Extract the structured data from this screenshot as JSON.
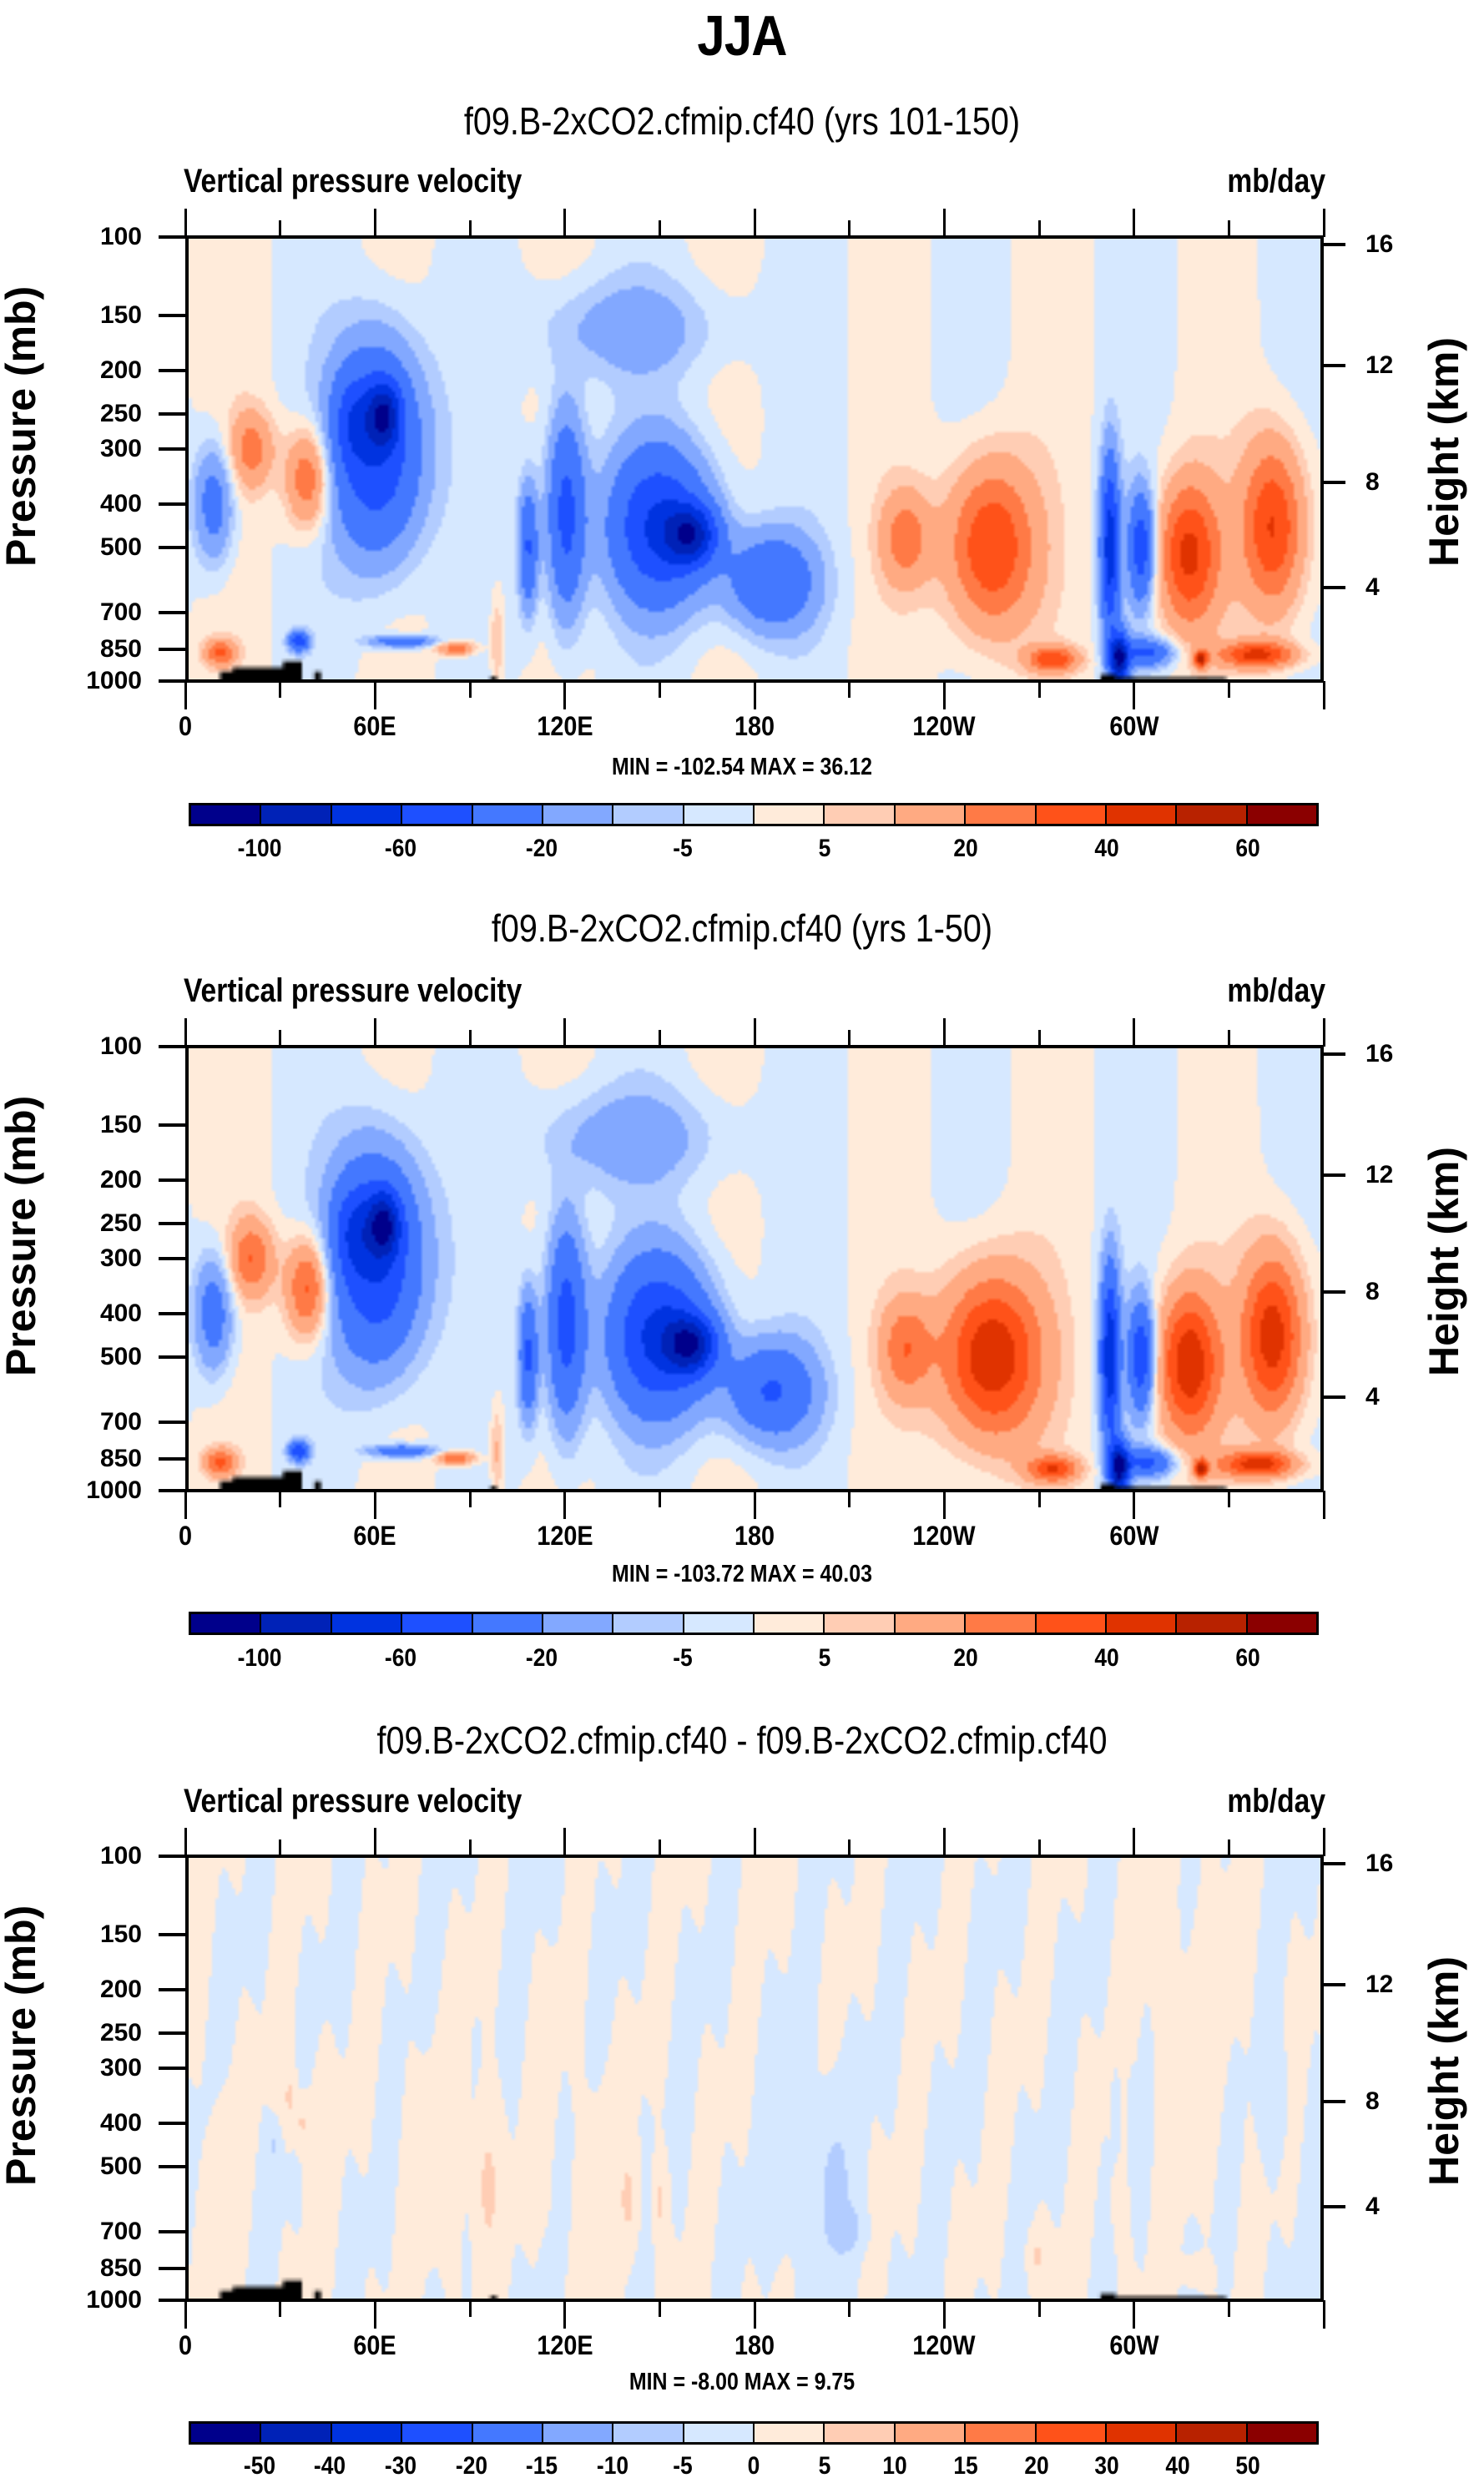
{
  "main_title": "JJA",
  "chart_data": [
    {
      "type": "heatmap",
      "title": "f09.B-2xCO2.cfmip.cf40 (yrs 101-150)",
      "left_string": "Vertical pressure velocity",
      "right_string": "mb/day",
      "ylabel": "Pressure (mb)",
      "ylabel_right": "Height (km)",
      "xlabel": "",
      "x_range": [
        0,
        360
      ],
      "y_range_mb": [
        1000,
        100
      ],
      "x_ticks": [
        {
          "v": 0,
          "label": "0"
        },
        {
          "v": 60,
          "label": "60E"
        },
        {
          "v": 120,
          "label": "120E"
        },
        {
          "v": 180,
          "label": "180"
        },
        {
          "v": 240,
          "label": "120W"
        },
        {
          "v": 300,
          "label": "60W"
        }
      ],
      "y_ticks": [
        100,
        150,
        200,
        250,
        300,
        400,
        500,
        700,
        850,
        1000
      ],
      "y_ticks_right": [
        {
          "km": 16,
          "mb": 104
        },
        {
          "km": 12,
          "mb": 195
        },
        {
          "km": 8,
          "mb": 357
        },
        {
          "km": 4,
          "mb": 617
        }
      ],
      "stats": "MIN = -102.54  MAX =  36.12",
      "min": -102.54,
      "max": 36.12,
      "levels": [
        -100,
        -80,
        -60,
        -40,
        -20,
        -10,
        -5,
        0,
        5,
        10,
        20,
        30,
        40,
        50,
        60
      ],
      "colorbar_labels": [
        {
          "i": 0,
          "label": "-100"
        },
        {
          "i": 2,
          "label": "-60"
        },
        {
          "i": 4,
          "label": "-20"
        },
        {
          "i": 6,
          "label": "-5"
        },
        {
          "i": 8,
          "label": "5"
        },
        {
          "i": 10,
          "label": "20"
        },
        {
          "i": 12,
          "label": "40"
        },
        {
          "i": 14,
          "label": "60"
        }
      ],
      "scale": 1.0,
      "background": 2,
      "features": [
        [
          8,
          400,
          120,
          6,
          -0.5
        ],
        [
          20,
          300,
          60,
          7,
          0.4
        ],
        [
          38,
          350,
          90,
          7,
          0.55
        ],
        [
          52,
          260,
          60,
          6,
          -0.4
        ],
        [
          60,
          300,
          160,
          14,
          -1
        ],
        [
          62,
          250,
          40,
          5,
          -1
        ],
        [
          68,
          820,
          25,
          10,
          -0.6
        ],
        [
          85,
          850,
          30,
          6,
          0.5
        ],
        [
          108,
          500,
          160,
          3,
          -0.7
        ],
        [
          120,
          420,
          220,
          6,
          -0.8
        ],
        [
          150,
          450,
          180,
          16,
          -1.0
        ],
        [
          160,
          470,
          70,
          8,
          -1.1
        ],
        [
          185,
          600,
          150,
          14,
          -0.65
        ],
        [
          140,
          160,
          40,
          30,
          -0.25
        ],
        [
          255,
          500,
          220,
          14,
          0.7
        ],
        [
          228,
          480,
          120,
          8,
          0.4
        ],
        [
          275,
          900,
          60,
          8,
          0.6
        ],
        [
          293,
          500,
          220,
          3,
          -1.2
        ],
        [
          296,
          900,
          120,
          3,
          -1.6
        ],
        [
          303,
          500,
          140,
          4,
          -0.9
        ],
        [
          305,
          870,
          60,
          8,
          -0.7
        ],
        [
          318,
          520,
          200,
          10,
          0.7
        ],
        [
          322,
          900,
          40,
          2,
          0.8
        ],
        [
          345,
          450,
          200,
          10,
          0.7
        ],
        [
          340,
          880,
          60,
          12,
          0.7
        ],
        [
          10,
          870,
          60,
          5,
          0.5
        ],
        [
          35,
          820,
          40,
          3,
          -0.9
        ],
        [
          98,
          820,
          200,
          2,
          0.2
        ]
      ],
      "topography": [
        [
          10,
          30,
          960
        ],
        [
          14,
          32,
          940
        ],
        [
          30,
          36,
          910
        ],
        [
          40,
          42,
          960
        ],
        [
          96,
          98,
          985
        ],
        [
          290,
          295,
          975
        ],
        [
          295,
          330,
          990
        ]
      ]
    },
    {
      "type": "heatmap",
      "title": "f09.B-2xCO2.cfmip.cf40 (yrs 1-50)",
      "left_string": "Vertical pressure velocity",
      "right_string": "mb/day",
      "ylabel": "Pressure (mb)",
      "ylabel_right": "Height (km)",
      "xlabel": "",
      "x_range": [
        0,
        360
      ],
      "y_range_mb": [
        1000,
        100
      ],
      "x_ticks": [
        {
          "v": 0,
          "label": "0"
        },
        {
          "v": 60,
          "label": "60E"
        },
        {
          "v": 120,
          "label": "120E"
        },
        {
          "v": 180,
          "label": "180"
        },
        {
          "v": 240,
          "label": "120W"
        },
        {
          "v": 300,
          "label": "60W"
        }
      ],
      "y_ticks": [
        100,
        150,
        200,
        250,
        300,
        400,
        500,
        700,
        850,
        1000
      ],
      "y_ticks_right": [
        {
          "km": 16,
          "mb": 104
        },
        {
          "km": 12,
          "mb": 195
        },
        {
          "km": 8,
          "mb": 357
        },
        {
          "km": 4,
          "mb": 617
        }
      ],
      "stats": "MIN = -103.72  MAX =  40.03",
      "min": -103.72,
      "max": 40.03,
      "levels": [
        -100,
        -80,
        -60,
        -40,
        -20,
        -10,
        -5,
        0,
        5,
        10,
        20,
        30,
        40,
        50,
        60
      ],
      "colorbar_labels": [
        {
          "i": 0,
          "label": "-100"
        },
        {
          "i": 2,
          "label": "-60"
        },
        {
          "i": 4,
          "label": "-20"
        },
        {
          "i": 6,
          "label": "-5"
        },
        {
          "i": 8,
          "label": "5"
        },
        {
          "i": 10,
          "label": "20"
        },
        {
          "i": 12,
          "label": "40"
        },
        {
          "i": 14,
          "label": "60"
        }
      ],
      "scale": 1.05,
      "background": 2,
      "features": [
        [
          8,
          400,
          120,
          6,
          -0.5
        ],
        [
          20,
          300,
          60,
          7,
          0.45
        ],
        [
          38,
          350,
          90,
          7,
          0.6
        ],
        [
          52,
          260,
          60,
          6,
          -0.4
        ],
        [
          60,
          300,
          160,
          14,
          -1
        ],
        [
          62,
          250,
          40,
          5,
          -1
        ],
        [
          68,
          820,
          25,
          10,
          -0.6
        ],
        [
          85,
          850,
          30,
          6,
          0.5
        ],
        [
          108,
          500,
          160,
          3,
          -0.7
        ],
        [
          120,
          420,
          220,
          6,
          -0.8
        ],
        [
          150,
          450,
          180,
          16,
          -1.0
        ],
        [
          160,
          470,
          70,
          8,
          -1.1
        ],
        [
          185,
          600,
          150,
          14,
          -0.65
        ],
        [
          140,
          160,
          40,
          30,
          -0.25
        ],
        [
          255,
          500,
          220,
          16,
          0.8
        ],
        [
          228,
          480,
          120,
          8,
          0.4
        ],
        [
          275,
          900,
          60,
          8,
          0.6
        ],
        [
          293,
          500,
          220,
          3,
          -1.2
        ],
        [
          296,
          900,
          120,
          3,
          -1.6
        ],
        [
          303,
          500,
          140,
          4,
          -0.9
        ],
        [
          305,
          870,
          60,
          8,
          -0.7
        ],
        [
          318,
          520,
          200,
          10,
          0.75
        ],
        [
          322,
          900,
          40,
          2,
          0.8
        ],
        [
          345,
          450,
          200,
          10,
          0.75
        ],
        [
          340,
          880,
          60,
          12,
          0.7
        ],
        [
          10,
          870,
          60,
          5,
          0.5
        ],
        [
          35,
          820,
          40,
          3,
          -0.9
        ],
        [
          98,
          820,
          200,
          2,
          0.2
        ]
      ],
      "topography": [
        [
          10,
          30,
          960
        ],
        [
          14,
          32,
          940
        ],
        [
          30,
          36,
          910
        ],
        [
          40,
          42,
          960
        ],
        [
          96,
          98,
          985
        ],
        [
          290,
          295,
          975
        ],
        [
          295,
          330,
          990
        ]
      ]
    },
    {
      "type": "heatmap",
      "title": "f09.B-2xCO2.cfmip.cf40 - f09.B-2xCO2.cfmip.cf40",
      "left_string": "Vertical pressure velocity",
      "right_string": "mb/day",
      "ylabel": "Pressure (mb)",
      "ylabel_right": "Height (km)",
      "xlabel": "",
      "x_range": [
        0,
        360
      ],
      "y_range_mb": [
        1000,
        100
      ],
      "x_ticks": [
        {
          "v": 0,
          "label": "0"
        },
        {
          "v": 60,
          "label": "60E"
        },
        {
          "v": 120,
          "label": "120E"
        },
        {
          "v": 180,
          "label": "180"
        },
        {
          "v": 240,
          "label": "120W"
        },
        {
          "v": 300,
          "label": "60W"
        }
      ],
      "y_ticks": [
        100,
        150,
        200,
        250,
        300,
        400,
        500,
        700,
        850,
        1000
      ],
      "y_ticks_right": [
        {
          "km": 16,
          "mb": 104
        },
        {
          "km": 12,
          "mb": 195
        },
        {
          "km": 8,
          "mb": 357
        },
        {
          "km": 4,
          "mb": 617
        }
      ],
      "stats": "MIN =  -8.00  MAX =   9.75",
      "min": -8.0,
      "max": 9.75,
      "levels": [
        -50,
        -40,
        -30,
        -20,
        -15,
        -10,
        -5,
        0,
        5,
        10,
        15,
        20,
        30,
        40,
        50
      ],
      "colorbar_labels": [
        {
          "i": 0,
          "label": "-50"
        },
        {
          "i": 1,
          "label": "-40"
        },
        {
          "i": 2,
          "label": "-30"
        },
        {
          "i": 3,
          "label": "-20"
        },
        {
          "i": 4,
          "label": "-15"
        },
        {
          "i": 5,
          "label": "-10"
        },
        {
          "i": 6,
          "label": "-5"
        },
        {
          "i": 7,
          "label": "0"
        },
        {
          "i": 8,
          "label": "5"
        },
        {
          "i": 9,
          "label": "10"
        },
        {
          "i": 10,
          "label": "15"
        },
        {
          "i": 11,
          "label": "20"
        },
        {
          "i": 12,
          "label": "30"
        },
        {
          "i": 13,
          "label": "40"
        },
        {
          "i": 14,
          "label": "50"
        }
      ],
      "scale": 1.0,
      "background": 0,
      "features": [
        [
          10,
          500,
          300,
          4,
          1.5
        ],
        [
          40,
          450,
          220,
          4,
          1.5
        ],
        [
          32,
          350,
          60,
          2,
          6
        ],
        [
          36,
          400,
          50,
          2,
          6
        ],
        [
          27,
          450,
          40,
          2,
          -6
        ],
        [
          80,
          500,
          300,
          10,
          1.6
        ],
        [
          95,
          550,
          220,
          4,
          6
        ],
        [
          115,
          420,
          250,
          3,
          1.5
        ],
        [
          118,
          500,
          120,
          2,
          -1.5
        ],
        [
          130,
          500,
          300,
          6,
          1.5
        ],
        [
          140,
          600,
          150,
          3,
          6
        ],
        [
          150,
          600,
          120,
          2,
          6
        ],
        [
          190,
          550,
          280,
          5,
          -2
        ],
        [
          205,
          550,
          250,
          6,
          -6.5
        ],
        [
          210,
          700,
          80,
          5,
          -6
        ],
        [
          270,
          800,
          100,
          3,
          5.5
        ],
        [
          296,
          650,
          150,
          3,
          1.2
        ],
        [
          318,
          250,
          200,
          14,
          1.5
        ],
        [
          345,
          350,
          100,
          4,
          -4
        ],
        [
          320,
          870,
          60,
          4,
          4
        ],
        [
          295,
          370,
          60,
          1,
          -5
        ],
        [
          300,
          380,
          60,
          1,
          -5
        ]
      ],
      "topography": [
        [
          10,
          30,
          960
        ],
        [
          14,
          32,
          940
        ],
        [
          30,
          36,
          910
        ],
        [
          40,
          42,
          960
        ],
        [
          96,
          98,
          985
        ],
        [
          290,
          295,
          975
        ],
        [
          295,
          330,
          990
        ]
      ]
    }
  ],
  "colorbar": {
    "colors": [
      "#00008B",
      "#0022B7",
      "#0033E0",
      "#1E50FF",
      "#4478FF",
      "#82A8FF",
      "#B2CCFF",
      "#D6E8FF",
      "#FFEBDA",
      "#FFCDB4",
      "#FFAA82",
      "#FF7A46",
      "#FF5219",
      "#E03300",
      "#B82200",
      "#8B0000"
    ]
  },
  "topography_color": "#000000"
}
